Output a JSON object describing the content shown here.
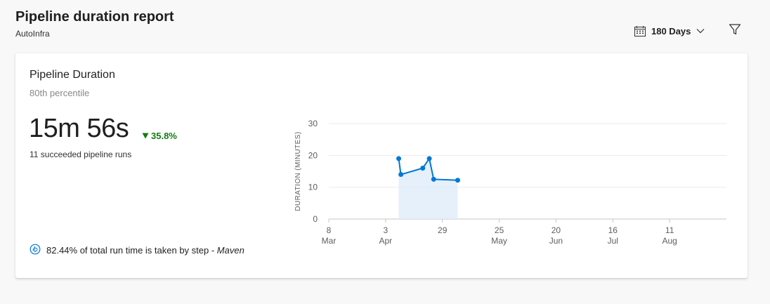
{
  "header": {
    "title": "Pipeline duration report",
    "subtitle": "AutoInfra",
    "range_label": "180 Days"
  },
  "icons": {
    "calendar": "calendar-icon",
    "chevron": "chevron-down-icon",
    "filter": "filter-icon",
    "delta": "triangle-down-icon",
    "insight": "insight-icon"
  },
  "colors": {
    "accent": "#0078d4",
    "fill": "#deecf9",
    "positive": "#107c10"
  },
  "card": {
    "title": "Pipeline Duration",
    "subtitle": "80th percentile",
    "metric": "15m 56s",
    "delta": "35.8%",
    "caption": "11 succeeded pipeline runs",
    "insight_prefix": "82.44% of total run time is taken by step - ",
    "insight_step": "Maven"
  },
  "chart_data": {
    "type": "area",
    "ylabel": "DURATION (MINUTES)",
    "ylim": [
      0,
      30
    ],
    "yticks": [
      0,
      10,
      20,
      30
    ],
    "xlim": [
      "2021-03-08",
      "2021-09-06"
    ],
    "xticks": [
      {
        "date": "2021-03-08",
        "day": "8",
        "month": "Mar"
      },
      {
        "date": "2021-04-03",
        "day": "3",
        "month": "Apr"
      },
      {
        "date": "2021-04-29",
        "day": "29",
        "month": ""
      },
      {
        "date": "2021-05-25",
        "day": "25",
        "month": "May"
      },
      {
        "date": "2021-06-20",
        "day": "20",
        "month": "Jun"
      },
      {
        "date": "2021-07-16",
        "day": "16",
        "month": "Jul"
      },
      {
        "date": "2021-08-11",
        "day": "11",
        "month": "Aug"
      }
    ],
    "grid": true,
    "series": [
      {
        "points": [
          {
            "x": "2021-04-09",
            "y": 19.0
          },
          {
            "x": "2021-04-10",
            "y": 14.0
          },
          {
            "x": "2021-04-20",
            "y": 16.0
          },
          {
            "x": "2021-04-23",
            "y": 19.0
          },
          {
            "x": "2021-04-25",
            "y": 12.5
          },
          {
            "x": "2021-05-06",
            "y": 12.2
          }
        ]
      }
    ]
  }
}
